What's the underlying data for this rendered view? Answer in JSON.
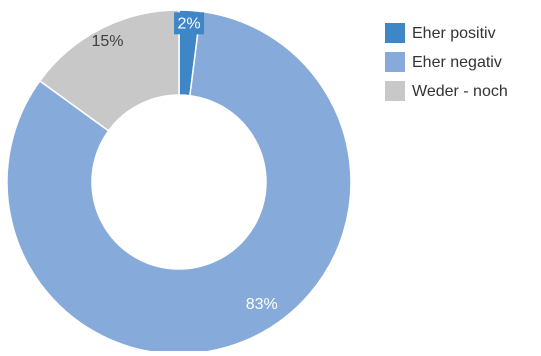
{
  "chart_data": {
    "type": "pie",
    "donut": true,
    "title": "",
    "legend_position": "right",
    "slices": [
      {
        "label": "Eher positiv",
        "value": 2,
        "value_label": "2%",
        "color": "#3f86c7",
        "label_color": "#ffffff",
        "label_background": true
      },
      {
        "label": "Eher negativ",
        "value": 83,
        "value_label": "83%",
        "color": "#86aad9",
        "label_color": "#ffffff",
        "label_background": false
      },
      {
        "label": "Weder - noch",
        "value": 15,
        "value_label": "15%",
        "color": "#c8c8c8",
        "label_color": "#404040",
        "label_background": false
      }
    ]
  }
}
